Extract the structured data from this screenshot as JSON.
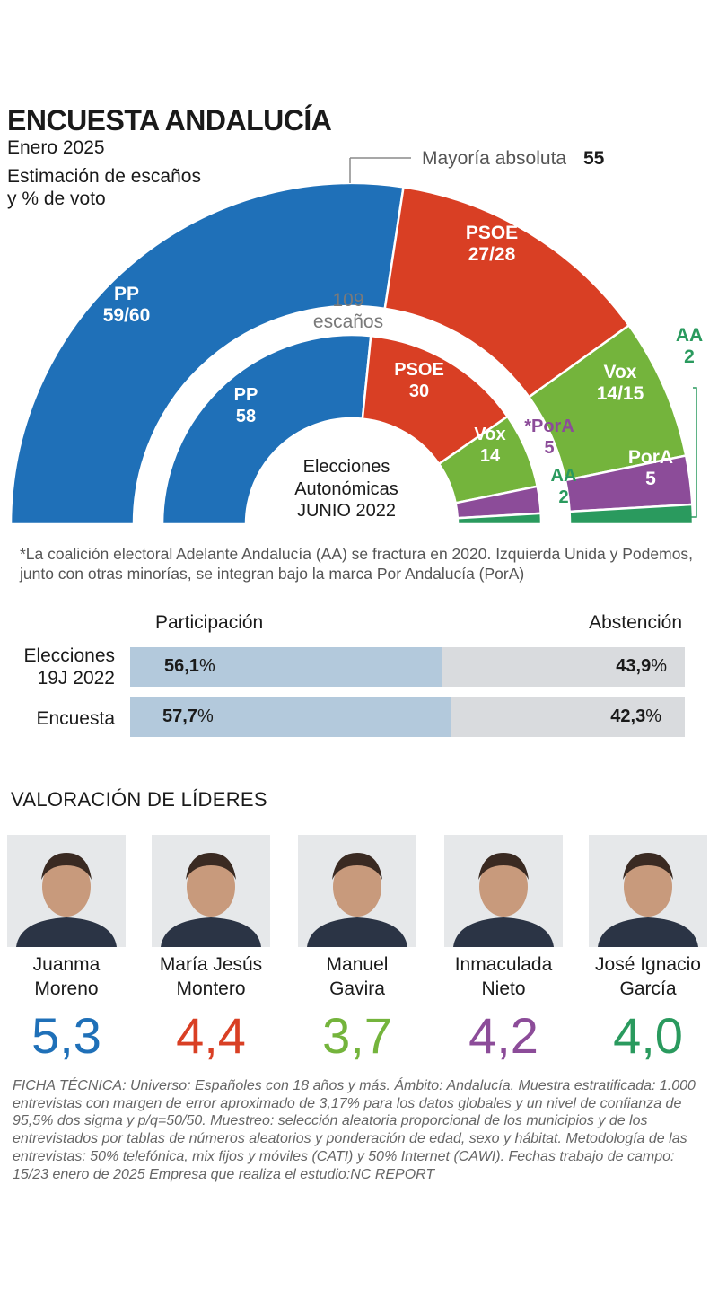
{
  "header": {
    "title": "ENCUESTA ANDALUCÍA",
    "subtitle": "Enero 2025",
    "description_line1": "Estimación de escaños",
    "description_line2": "y % de voto"
  },
  "chart_data": {
    "type": "hemicycle",
    "total_seats_label": "109",
    "total_seats_unit": "escaños",
    "majority_label": "Mayoría absoluta",
    "majority_value": "55",
    "outer_ring": {
      "name": "Encuesta",
      "series": [
        {
          "party": "PP",
          "label": "59/60",
          "seats": 59.5,
          "color": "#1f70b8"
        },
        {
          "party": "PSOE",
          "label": "27/28",
          "seats": 27.5,
          "color": "#d93f24"
        },
        {
          "party": "Vox",
          "label": "14/15",
          "seats": 14.5,
          "color": "#74b43c"
        },
        {
          "party": "PorA",
          "label": "5",
          "seats": 5,
          "color": "#8c4c99"
        },
        {
          "party": "AA",
          "label": "2",
          "seats": 2,
          "color": "#2a9a5e"
        }
      ]
    },
    "inner_ring": {
      "name_line1": "Elecciones",
      "name_line2": "Autonómicas",
      "name_line3": "JUNIO 2022",
      "series": [
        {
          "party": "PP",
          "label": "58",
          "seats": 58,
          "color": "#1f70b8"
        },
        {
          "party": "PSOE",
          "label": "30",
          "seats": 30,
          "color": "#d93f24"
        },
        {
          "party": "Vox",
          "label": "14",
          "seats": 14,
          "color": "#74b43c"
        },
        {
          "party": "*PorA",
          "label": "5",
          "seats": 5,
          "color": "#8c4c99"
        },
        {
          "party": "AA",
          "label": "2",
          "seats": 2,
          "color": "#2a9a5e"
        }
      ]
    }
  },
  "note": "*La coalición electoral Adelante Andalucía (AA) se fractura en 2020. Izquierda Unida y Podemos, junto con otras minorías, se integran bajo la marca Por Andalucía (PorA)",
  "turnout": {
    "participation_header": "Participación",
    "abstention_header": "Abstención",
    "rows": [
      {
        "label_line1": "Elecciones",
        "label_line2": "19J 2022",
        "participation": 56.1,
        "participation_text": "56,1",
        "abstention_text": "43,9"
      },
      {
        "label_line1": "Encuesta",
        "label_line2": "",
        "participation": 57.7,
        "participation_text": "57,7",
        "abstention_text": "42,3"
      }
    ],
    "percent_sign": "%",
    "colors": {
      "participation": "#b3c9dc",
      "abstention": "#d9dbde"
    }
  },
  "leaders": {
    "title": "VALORACIÓN DE LÍDERES",
    "items": [
      {
        "first": "Juanma",
        "last": "Moreno",
        "score": "5,3",
        "color": "#1f70b8",
        "photo": "leader-photo-juanma-moreno"
      },
      {
        "first": "María Jesús",
        "last": "Montero",
        "score": "4,4",
        "color": "#d93f24",
        "photo": "leader-photo-maria-jesus-montero"
      },
      {
        "first": "Manuel",
        "last": "Gavira",
        "score": "3,7",
        "color": "#74b43c",
        "photo": "leader-photo-manuel-gavira"
      },
      {
        "first": "Inmaculada",
        "last": "Nieto",
        "score": "4,2",
        "color": "#8c4c99",
        "photo": "leader-photo-inmaculada-nieto"
      },
      {
        "first": "José Ignacio",
        "last": "García",
        "score": "4,0",
        "color": "#2a9a5e",
        "photo": "leader-photo-jose-ignacio-garcia"
      }
    ]
  },
  "ficha": "FICHA TÉCNICA: Universo: Españoles con 18 años y más. Ámbito: Andalucía. Muestra estratificada: 1.000 entrevistas con margen de error aproximado de 3,17% para los datos globales y un nivel de confianza de 95,5% dos sigma y p/q=50/50. Muestreo: selección aleatoria proporcional de los municipios y de los entrevistados por tablas de números aleatorios y ponderación de edad, sexo y hábitat. Metodología de las entrevistas: 50% telefónica, mix fijos y móviles (CATI) y 50% Internet (CAWI). Fechas trabajo de campo: 15/23 enero de 2025 Empresa que realiza el estudio:NC REPORT"
}
